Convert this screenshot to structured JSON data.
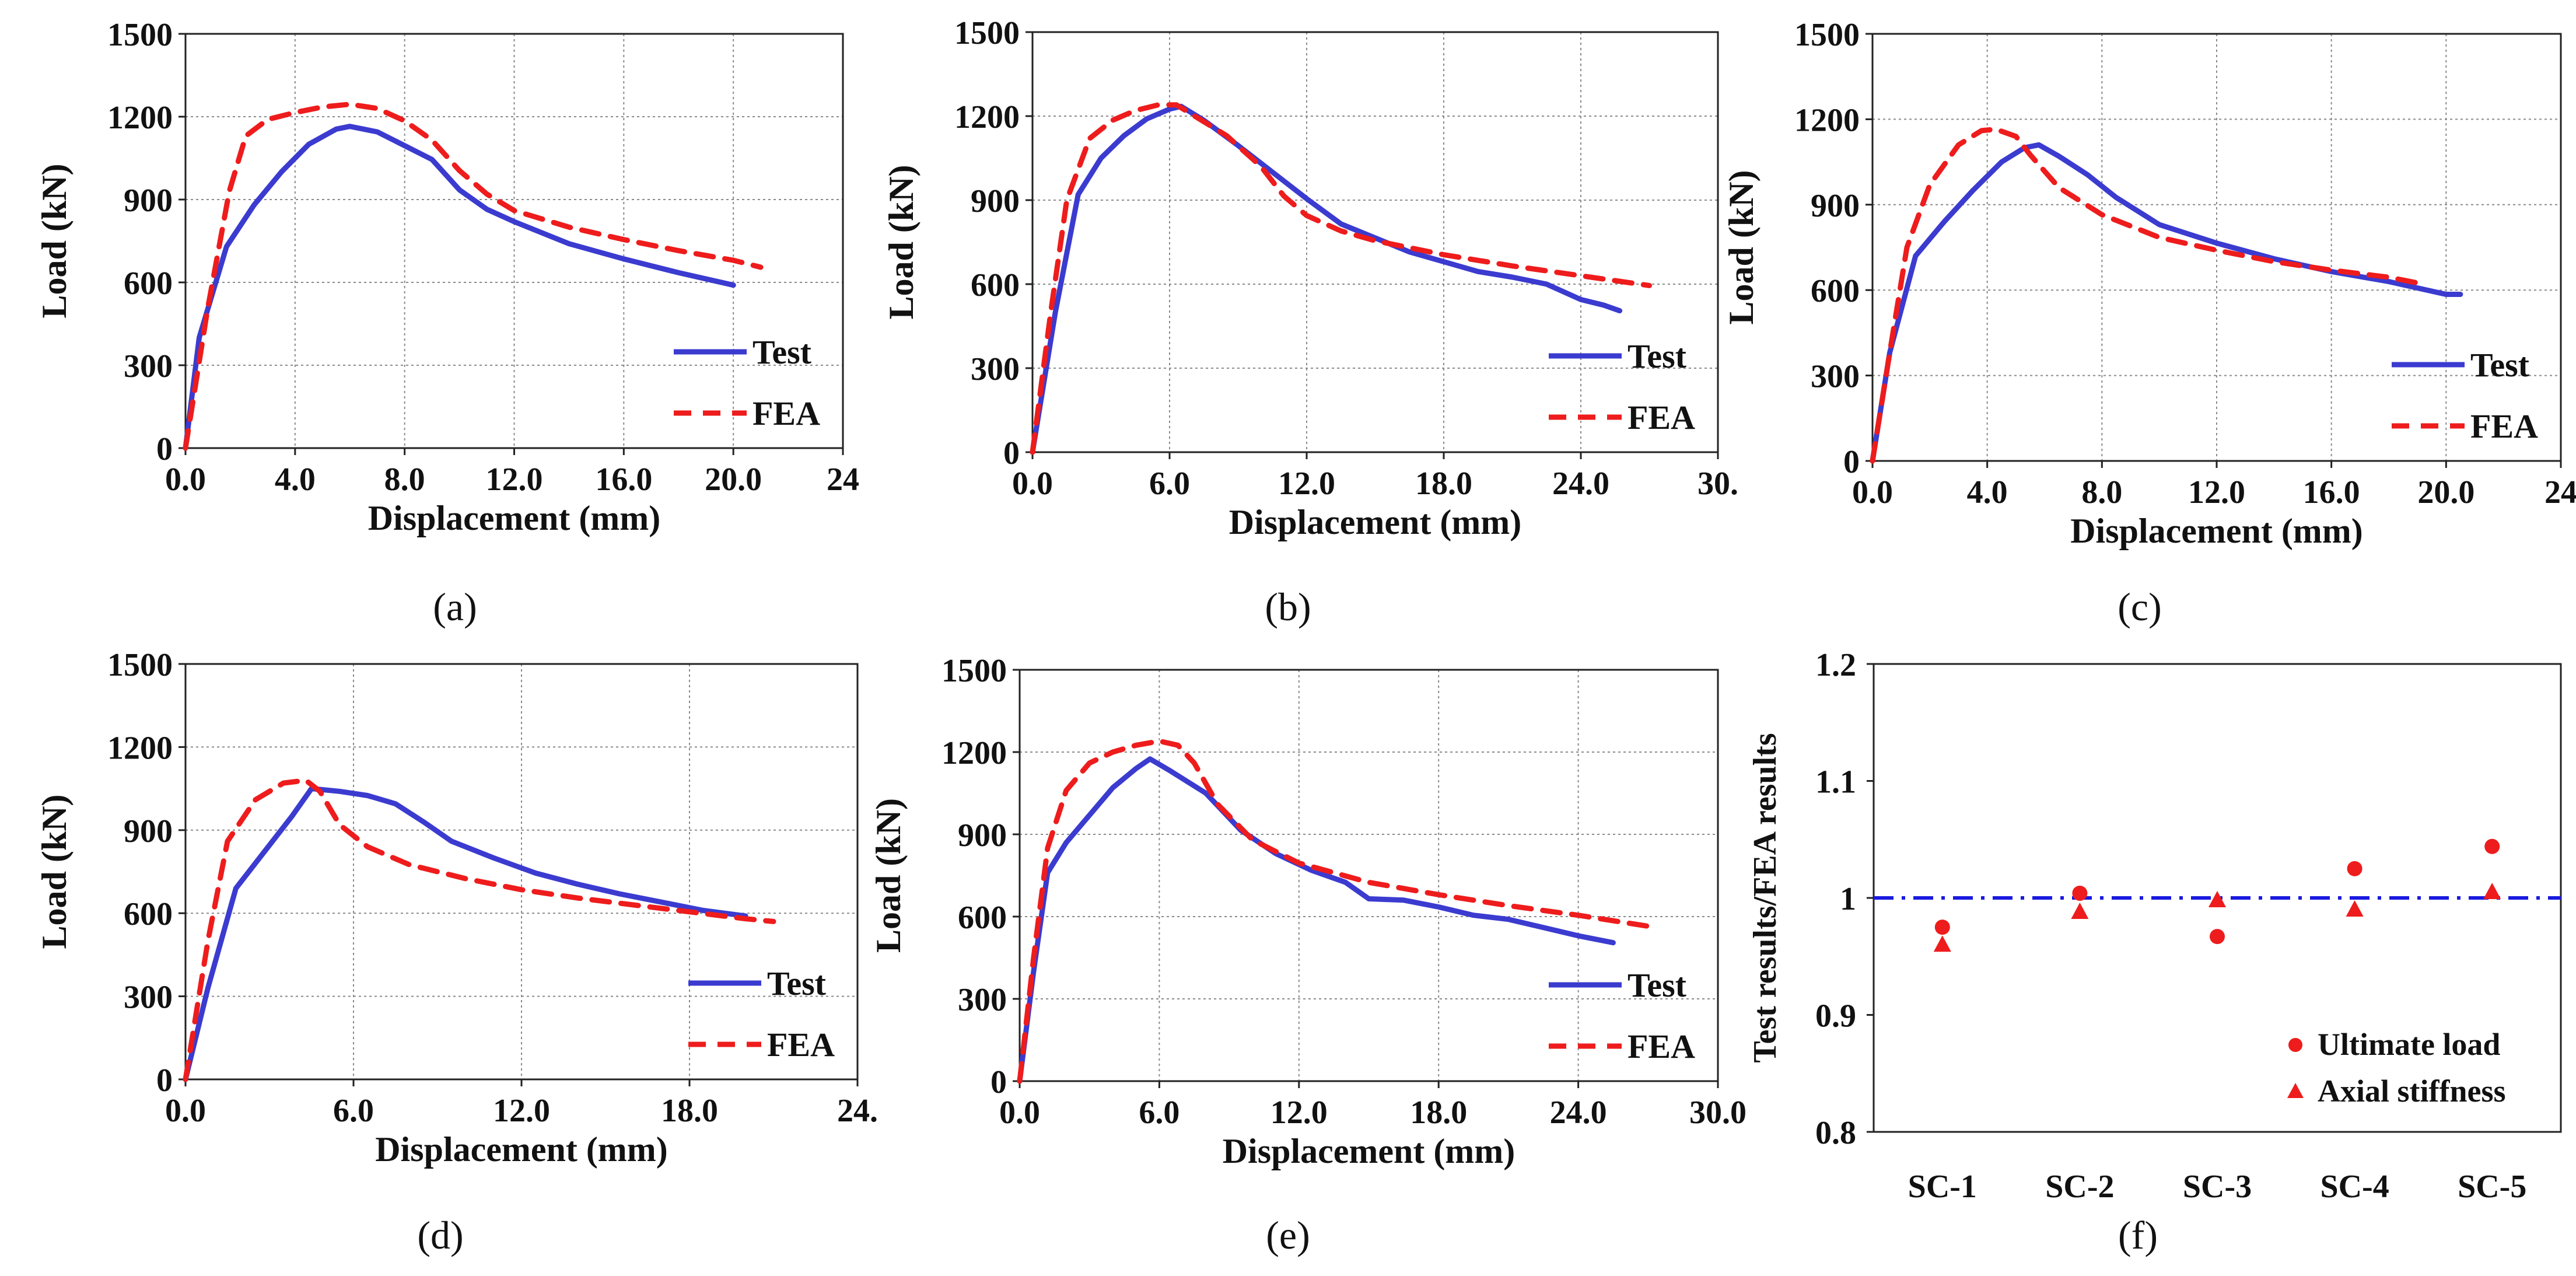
{
  "figure": {
    "colors": {
      "test": "#3b3bd0",
      "fea": "#ee1c1c",
      "points": "#ee1c1c",
      "reference": "#1a1ae0",
      "grid": "#8a8a8a"
    }
  },
  "chart_data": [
    {
      "id": "a",
      "type": "line",
      "caption": "(a)",
      "xlabel": "Displacement (mm)",
      "ylabel": "Load (kN)",
      "xlim": [
        0,
        24
      ],
      "ylim": [
        0,
        1500
      ],
      "xticks": [
        "0.0",
        "4.0",
        "8.0",
        "12.0",
        "16.0",
        "20.0",
        "24"
      ],
      "yticks": [
        "0",
        "300",
        "600",
        "900",
        "1200",
        "1500"
      ],
      "grid": true,
      "legend_position": "bottom-right",
      "series": [
        {
          "name": "Test",
          "style": "solid",
          "x": [
            0,
            0.5,
            1.5,
            2.5,
            3.5,
            4.5,
            5.5,
            6.0,
            7.0,
            8.0,
            9.0,
            10.0,
            11.0,
            12.0,
            14.0,
            16.0,
            18.0,
            20.0
          ],
          "y": [
            0,
            400,
            730,
            880,
            1000,
            1100,
            1155,
            1165,
            1145,
            1095,
            1045,
            935,
            865,
            820,
            740,
            685,
            635,
            590
          ]
        },
        {
          "name": "FEA",
          "style": "dashed",
          "x": [
            0,
            0.8,
            1.6,
            2.2,
            3.0,
            4.0,
            5.0,
            6.0,
            7.0,
            8.0,
            9.0,
            10.0,
            11.0,
            12.0,
            14.0,
            16.0,
            18.0,
            20.0,
            21.0
          ],
          "y": [
            0,
            500,
            930,
            1130,
            1190,
            1215,
            1235,
            1245,
            1230,
            1185,
            1115,
            1005,
            920,
            860,
            800,
            755,
            715,
            680,
            655
          ]
        }
      ]
    },
    {
      "id": "b",
      "type": "line",
      "caption": "(b)",
      "xlabel": "Displacement (mm)",
      "ylabel": "Load (kN)",
      "xlim": [
        0,
        30
      ],
      "ylim": [
        0,
        1500
      ],
      "xticks": [
        "0.0",
        "6.0",
        "12.0",
        "18.0",
        "24.0",
        "30."
      ],
      "yticks": [
        "0",
        "300",
        "600",
        "900",
        "1200",
        "1500"
      ],
      "grid": true,
      "legend_position": "bottom-right",
      "series": [
        {
          "name": "Test",
          "style": "solid",
          "x": [
            0,
            1.0,
            2.0,
            3.0,
            4.0,
            5.0,
            6.0,
            6.5,
            7.5,
            9.0,
            10.5,
            12.0,
            13.5,
            15.0,
            16.5,
            18.0,
            19.5,
            21.0,
            22.5,
            24.0,
            25.0,
            25.7
          ],
          "y": [
            0,
            500,
            920,
            1050,
            1130,
            1190,
            1225,
            1235,
            1185,
            1095,
            1000,
            905,
            815,
            765,
            715,
            680,
            645,
            625,
            600,
            545,
            525,
            505
          ]
        },
        {
          "name": "FEA",
          "style": "dashed",
          "x": [
            0,
            0.8,
            1.5,
            2.5,
            3.5,
            4.5,
            5.5,
            6.3,
            7.0,
            8.5,
            10.0,
            11.0,
            12.0,
            13.5,
            15.0,
            18.0,
            21.0,
            24.0,
            27.0
          ],
          "y": [
            0,
            500,
            900,
            1120,
            1185,
            1220,
            1240,
            1240,
            1205,
            1130,
            1020,
            915,
            845,
            790,
            755,
            705,
            665,
            630,
            595
          ]
        }
      ]
    },
    {
      "id": "c",
      "type": "line",
      "caption": "(c)",
      "xlabel": "Displacement (mm)",
      "ylabel": "Load (kN)",
      "xlim": [
        0,
        24
      ],
      "ylim": [
        0,
        1500
      ],
      "xticks": [
        "0.0",
        "4.0",
        "8.0",
        "12.0",
        "16.0",
        "20.0",
        "24"
      ],
      "yticks": [
        "0",
        "300",
        "600",
        "900",
        "1200",
        "1500"
      ],
      "grid": true,
      "legend_position": "bottom-right",
      "series": [
        {
          "name": "Test",
          "style": "solid",
          "x": [
            0,
            0.6,
            1.5,
            2.5,
            3.5,
            4.5,
            5.3,
            5.8,
            6.5,
            7.5,
            8.5,
            10.0,
            12.0,
            14.0,
            16.0,
            18.0,
            20.0,
            20.5
          ],
          "y": [
            0,
            380,
            720,
            840,
            950,
            1050,
            1100,
            1110,
            1070,
            1005,
            925,
            830,
            765,
            710,
            665,
            630,
            585,
            585
          ]
        },
        {
          "name": "FEA",
          "style": "dashed",
          "x": [
            0,
            0.6,
            1.2,
            2.0,
            3.0,
            3.8,
            4.3,
            5.0,
            5.5,
            6.5,
            8.0,
            10.0,
            12.0,
            14.0,
            16.0,
            18.0,
            19.0
          ],
          "y": [
            0,
            380,
            750,
            970,
            1110,
            1160,
            1165,
            1140,
            1075,
            960,
            865,
            785,
            740,
            700,
            670,
            645,
            625
          ]
        }
      ]
    },
    {
      "id": "d",
      "type": "line",
      "caption": "(d)",
      "xlabel": "Displacement (mm)",
      "ylabel": "Load (kN)",
      "xlim": [
        0,
        24
      ],
      "ylim": [
        0,
        1500
      ],
      "xticks": [
        "0.0",
        "6.0",
        "12.0",
        "18.0",
        "24."
      ],
      "yticks": [
        "0",
        "300",
        "600",
        "900",
        "1200",
        "1500"
      ],
      "grid": true,
      "legend_position": "bottom-right",
      "series": [
        {
          "name": "Test",
          "style": "solid",
          "x": [
            0,
            0.8,
            1.8,
            2.8,
            3.8,
            4.5,
            5.5,
            6.5,
            7.5,
            8.5,
            9.5,
            11.0,
            12.5,
            14.0,
            15.5,
            17.0,
            18.5,
            20.0
          ],
          "y": [
            0,
            330,
            690,
            820,
            950,
            1050,
            1040,
            1025,
            995,
            930,
            860,
            800,
            745,
            705,
            670,
            640,
            610,
            590
          ]
        },
        {
          "name": "FEA",
          "style": "dashed",
          "x": [
            0,
            0.8,
            1.5,
            2.5,
            3.5,
            4.3,
            4.8,
            5.5,
            6.5,
            8.0,
            10.0,
            12.0,
            14.0,
            16.0,
            18.0,
            20.0,
            21.0
          ],
          "y": [
            0,
            500,
            860,
            1010,
            1070,
            1080,
            1040,
            920,
            840,
            775,
            725,
            685,
            655,
            630,
            605,
            580,
            570
          ]
        }
      ]
    },
    {
      "id": "e",
      "type": "line",
      "caption": "(e)",
      "xlabel": "Displacement (mm)",
      "ylabel": "Load (kN)",
      "xlim": [
        0,
        30
      ],
      "ylim": [
        0,
        1500
      ],
      "xticks": [
        "0.0",
        "6.0",
        "12.0",
        "18.0",
        "24.0",
        "30.0"
      ],
      "yticks": [
        "0",
        "300",
        "600",
        "900",
        "1200",
        "1500"
      ],
      "grid": true,
      "legend_position": "bottom-right",
      "series": [
        {
          "name": "Test",
          "style": "solid",
          "x": [
            0,
            0.6,
            1.2,
            2.0,
            3.0,
            4.0,
            5.0,
            5.6,
            6.5,
            8.0,
            9.5,
            11.0,
            12.5,
            14.0,
            15.0,
            16.5,
            18.0,
            19.5,
            21.0,
            22.5,
            24.0,
            25.5
          ],
          "y": [
            0,
            400,
            760,
            870,
            970,
            1070,
            1140,
            1175,
            1130,
            1050,
            915,
            830,
            770,
            725,
            665,
            660,
            635,
            605,
            590,
            560,
            530,
            505
          ]
        },
        {
          "name": "FEA",
          "style": "dashed",
          "x": [
            0,
            0.6,
            1.2,
            2.0,
            3.0,
            4.0,
            5.0,
            6.0,
            6.8,
            7.5,
            8.5,
            10.0,
            12.0,
            15.0,
            18.0,
            21.0,
            24.0,
            27.0
          ],
          "y": [
            0,
            450,
            850,
            1060,
            1160,
            1200,
            1225,
            1240,
            1225,
            1160,
            1010,
            880,
            795,
            725,
            680,
            640,
            605,
            565
          ]
        }
      ]
    },
    {
      "id": "f",
      "type": "scatter",
      "caption": "(f)",
      "xlabel": "",
      "ylabel": "Test results/FEA results",
      "categories": [
        "SC-1",
        "SC-2",
        "SC-3",
        "SC-4",
        "SC-5"
      ],
      "ylim": [
        0.8,
        1.2
      ],
      "yticks": [
        "0.8",
        "0.9",
        "1",
        "1.1",
        "1.2"
      ],
      "reference_line": 1.0,
      "grid": false,
      "legend_position": "bottom-right",
      "series": [
        {
          "name": "Ultimate load",
          "marker": "circle",
          "values": [
            0.975,
            1.004,
            0.967,
            1.025,
            1.044
          ]
        },
        {
          "name": "Axial stiffness",
          "marker": "triangle",
          "values": [
            0.96,
            0.988,
            0.998,
            0.99,
            1.005
          ]
        }
      ]
    }
  ]
}
